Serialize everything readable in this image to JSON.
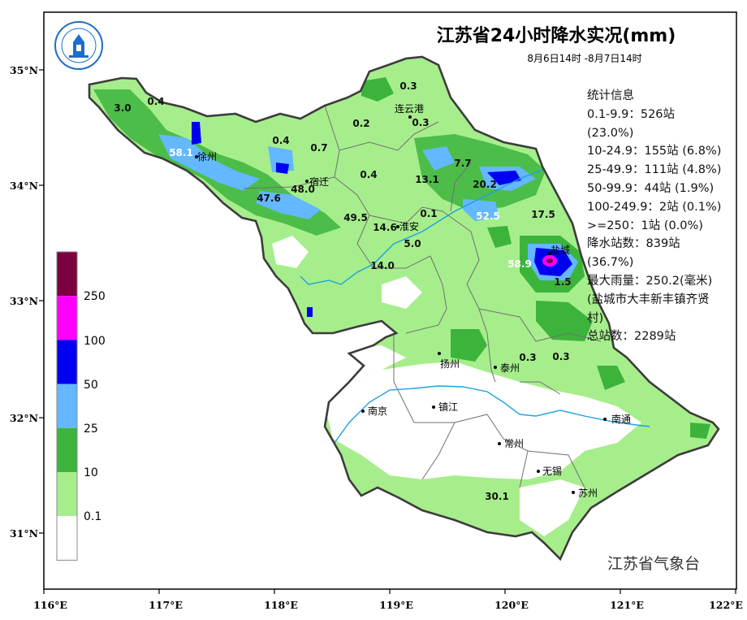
{
  "title": "江苏省24小时降水实况(mm)",
  "subtitle": "8月6日14时 -8月7日14时",
  "agency": "江苏省气象台",
  "logo_text": "江苏省气象台",
  "stats": {
    "heading": "统计信息",
    "lines": [
      "0.1-9.9：526站",
      "(23.0%)",
      "10-24.9：155站 (6.8%)",
      "25-49.9：111站 (4.8%)",
      "50-99.9：44站 (1.9%)",
      "100-249.9：2站 (0.1%)",
      ">=250：1站 (0.0%)",
      "降水站数：839站",
      "(36.7%)",
      "最大雨量：250.2(毫米)",
      "(盐城市大丰新丰镇齐贤",
      "村)",
      "总站数：2289站"
    ]
  },
  "legend": {
    "classes": [
      {
        "label": "",
        "color": "#7a0040"
      },
      {
        "label": "250",
        "color": "#ff00ff"
      },
      {
        "label": "100",
        "color": "#0000f0"
      },
      {
        "label": "50",
        "color": "#63b8ff"
      },
      {
        "label": "25",
        "color": "#3cb43c"
      },
      {
        "label": "10",
        "color": "#a6ee8c"
      },
      {
        "label": "0.1",
        "color": "#ffffff"
      }
    ]
  },
  "axes": {
    "lon_ticks": [
      "116°E",
      "117°E",
      "118°E",
      "119°E",
      "120°E",
      "121°E",
      "122°E"
    ],
    "lat_ticks": [
      "35°N",
      "34°N",
      "33°N",
      "32°N",
      "31°N"
    ]
  },
  "cities": [
    {
      "name": "连云港"
    },
    {
      "name": "徐州"
    },
    {
      "name": "宿迁"
    },
    {
      "name": "淮安"
    },
    {
      "name": "盐城"
    },
    {
      "name": "扬州"
    },
    {
      "name": "泰州"
    },
    {
      "name": "南京"
    },
    {
      "name": "镇江"
    },
    {
      "name": "南通"
    },
    {
      "name": "常州"
    },
    {
      "name": "无锡"
    },
    {
      "name": "苏州"
    }
  ],
  "rain_values": [
    {
      "value": "0.3",
      "white": false
    },
    {
      "value": "3.0",
      "white": false
    },
    {
      "value": "0.4",
      "white": false
    },
    {
      "value": "0.3",
      "white": false
    },
    {
      "value": "0.2",
      "white": false
    },
    {
      "value": "0.4",
      "white": false
    },
    {
      "value": "0.7",
      "white": false
    },
    {
      "value": "58.1",
      "white": true
    },
    {
      "value": "7.7",
      "white": false
    },
    {
      "value": "0.4",
      "white": false
    },
    {
      "value": "13.1",
      "white": false
    },
    {
      "value": "20.2",
      "white": false
    },
    {
      "value": "48.0",
      "white": false
    },
    {
      "value": "47.6",
      "white": false
    },
    {
      "value": "49.5",
      "white": false
    },
    {
      "value": "0.1",
      "white": false
    },
    {
      "value": "52.5",
      "white": true
    },
    {
      "value": "17.5",
      "white": false
    },
    {
      "value": "14.6",
      "white": false
    },
    {
      "value": "5.0",
      "white": false
    },
    {
      "value": "14.0",
      "white": false
    },
    {
      "value": "58.9",
      "white": true
    },
    {
      "value": "1.5",
      "white": false
    },
    {
      "value": "0.3",
      "white": false
    },
    {
      "value": "0.3",
      "white": false
    },
    {
      "value": "30.1",
      "white": false
    }
  ]
}
